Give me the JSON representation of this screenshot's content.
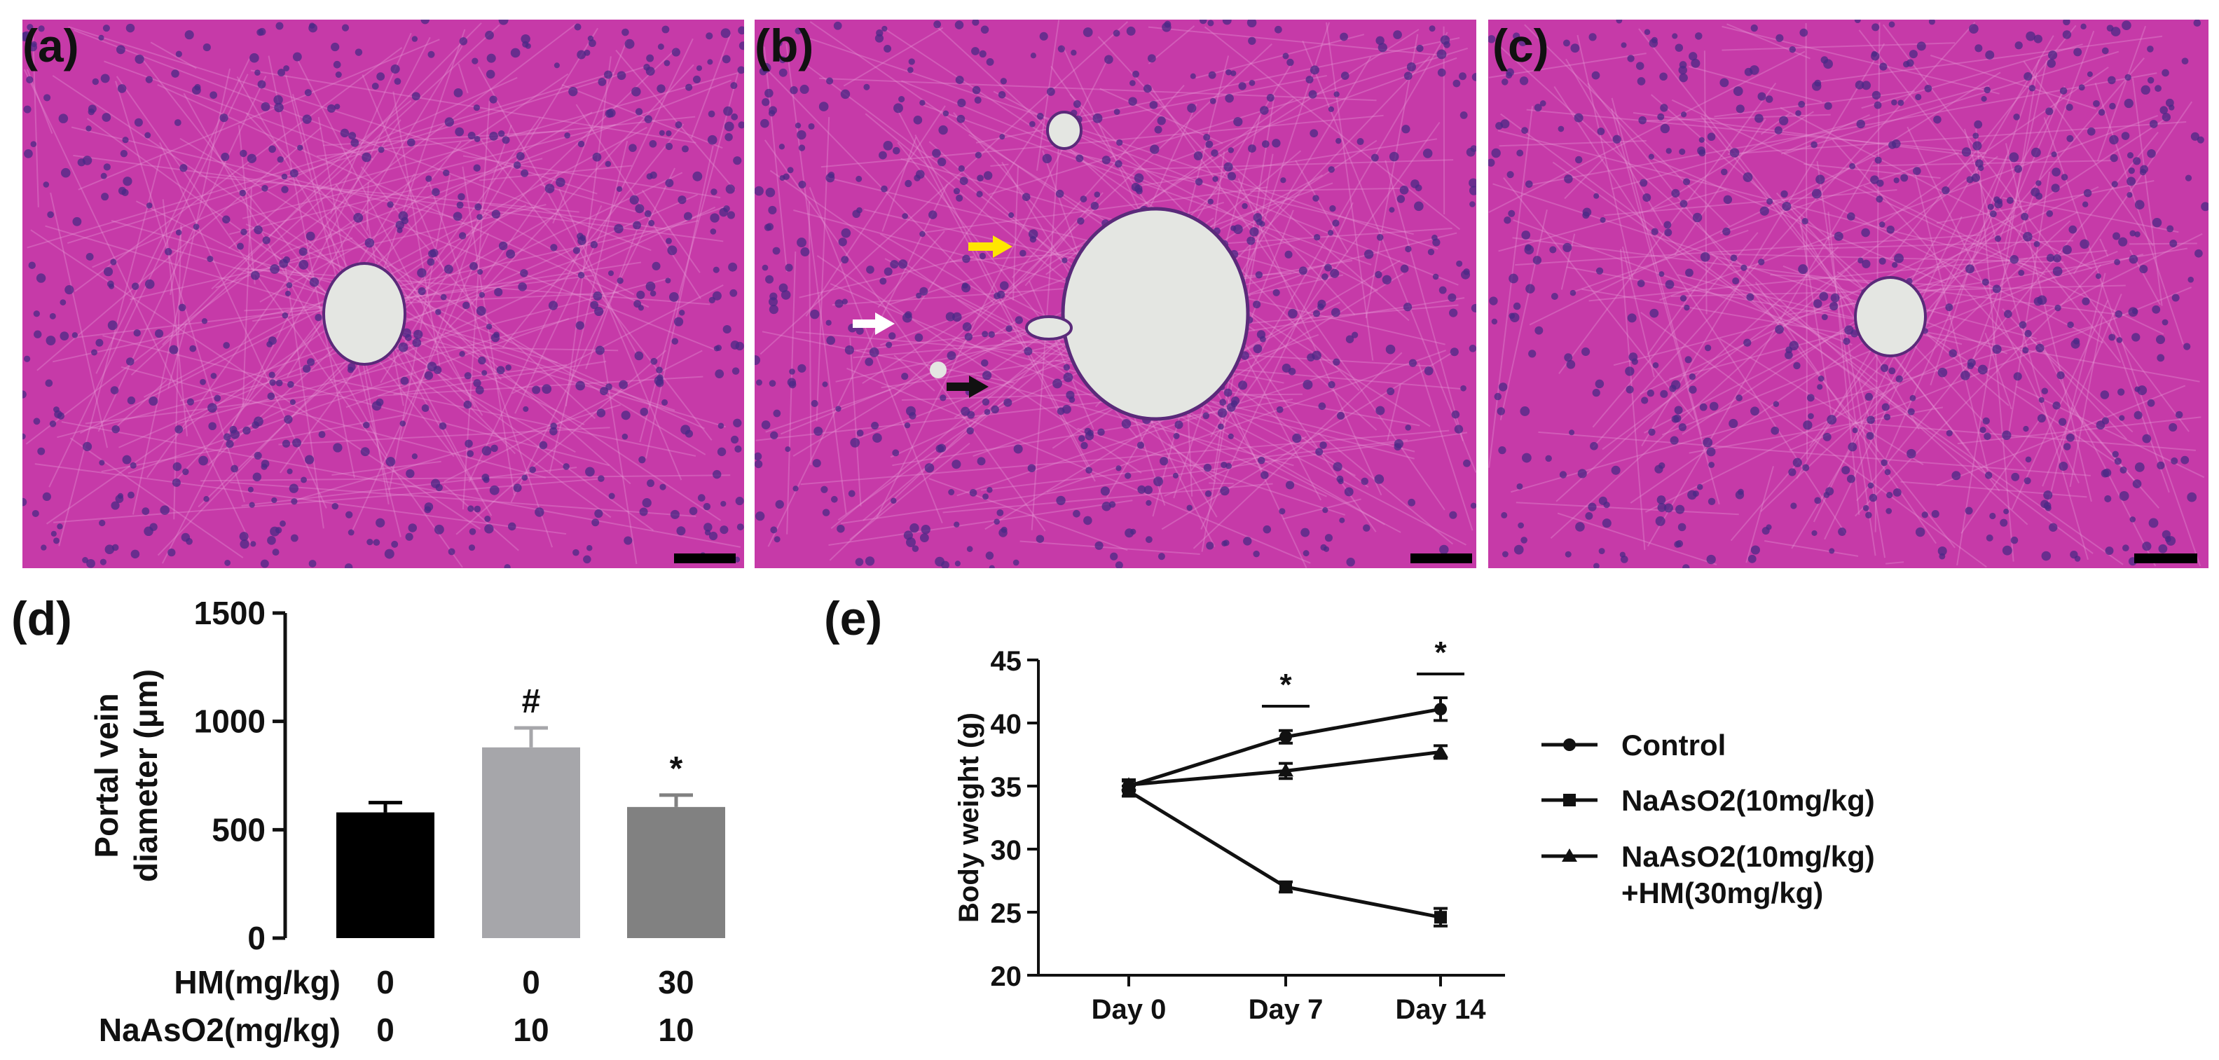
{
  "panels": {
    "a": {
      "label": "(a)"
    },
    "b": {
      "label": "(b)"
    },
    "c": {
      "label": "(c)"
    },
    "d": {
      "label": "(d)"
    },
    "e": {
      "label": "(e)"
    }
  },
  "colors": {
    "tissue_pink": "#c63aa8",
    "tissue_light": "#e79ad6",
    "nucleus": "#4a2a86",
    "lumen": "#e4e6e2",
    "arrow_yellow": "#ffe600",
    "arrow_white": "#ffffff",
    "arrow_black": "#111111"
  },
  "annotations": {
    "panel_b_arrows": [
      "yellow-arrow",
      "white-arrow",
      "black-arrow"
    ]
  },
  "chart_data": [
    {
      "id": "d",
      "type": "bar",
      "ylabel_line1": "Portal vein",
      "ylabel_line2": "diameter (μm)",
      "ylim": [
        0,
        1500
      ],
      "yticks": [
        0,
        500,
        1000,
        1500
      ],
      "values": [
        580,
        880,
        605
      ],
      "errors": [
        45,
        90,
        55
      ],
      "colors": [
        "#000000",
        "#a6a6aa",
        "#818181"
      ],
      "significance": [
        "",
        "#",
        "*"
      ],
      "group_rows": [
        {
          "label": "HM(mg/kg)",
          "values": [
            "0",
            "0",
            "30"
          ]
        },
        {
          "label": "NaAsO2(mg/kg)",
          "values": [
            "0",
            "10",
            "10"
          ]
        }
      ]
    },
    {
      "id": "e",
      "type": "line",
      "ylabel": "Body weight (g)",
      "ylim": [
        20,
        45
      ],
      "yticks": [
        20,
        25,
        30,
        35,
        40,
        45
      ],
      "categories": [
        "Day 0",
        "Day 7",
        "Day 14"
      ],
      "series": [
        {
          "name": "Control",
          "marker": "circle",
          "values": [
            35.0,
            38.9,
            41.1
          ],
          "errors": [
            0.4,
            0.5,
            0.9
          ]
        },
        {
          "name": "NaAsO2(10mg/kg)",
          "marker": "square",
          "values": [
            34.6,
            27.0,
            24.6
          ],
          "errors": [
            0.4,
            0.4,
            0.7
          ]
        },
        {
          "name": "NaAsO2(10mg/kg)",
          "name_line2": "+HM(30mg/kg)",
          "marker": "triangle",
          "values": [
            35.1,
            36.2,
            37.7
          ],
          "errors": [
            0.4,
            0.6,
            0.5
          ]
        }
      ],
      "significance": [
        {
          "label": "*",
          "category": "Day 7"
        },
        {
          "label": "*",
          "category": "Day 14"
        }
      ],
      "legend_position": "right"
    }
  ]
}
